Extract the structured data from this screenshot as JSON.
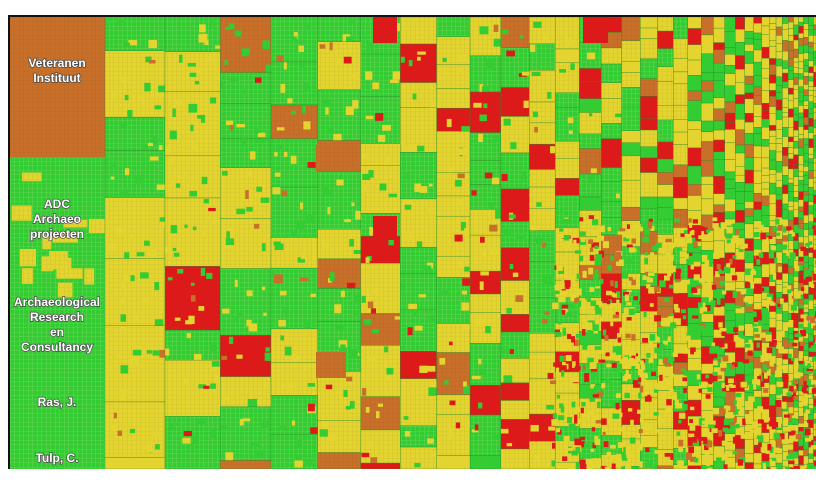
{
  "chart_data": {
    "type": "treemap",
    "title": "",
    "colors": {
      "green": "#33cc33",
      "yellow": "#e3d430",
      "orange": "#c8702a",
      "red": "#dd1a1a",
      "grid_line": "#86db6a",
      "frame": "#111111"
    },
    "labeled_nodes": [
      {
        "label": "Veteranen Instituut",
        "color": "orange"
      },
      {
        "label": "ADC Archaeo projecten",
        "color": "green"
      },
      {
        "label": "Archaeological Research en Consultancy",
        "color": "green"
      },
      {
        "label": "Ras, J.",
        "color": "green"
      },
      {
        "label": "Tulp, C.",
        "color": "green"
      }
    ],
    "legend": "none"
  }
}
